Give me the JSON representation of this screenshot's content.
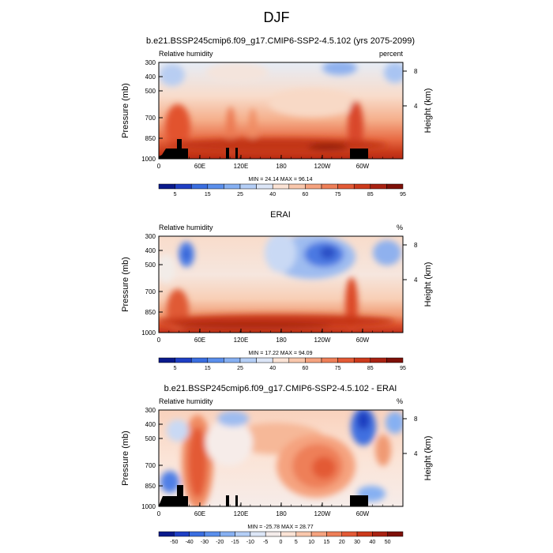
{
  "figure": {
    "title": "DJF"
  },
  "colors": {
    "abs_scale": [
      "#0a1a8c",
      "#1f3fc4",
      "#3a6ee0",
      "#5b8fec",
      "#86b0f2",
      "#b4cef6",
      "#dce6f7",
      "#fbe3d5",
      "#f9c7ac",
      "#f5a37f",
      "#ee7f58",
      "#e35a36",
      "#cc3a1c",
      "#a92212",
      "#7e1008"
    ],
    "diff_scale": [
      "#0a1a8c",
      "#1f3fc4",
      "#3a6ee0",
      "#5b8fec",
      "#86b0f2",
      "#b4cef6",
      "#dce6f7",
      "#f4ecea",
      "#fbe3d5",
      "#f9c7ac",
      "#f5a37f",
      "#ee7f58",
      "#e35a36",
      "#cc3a1c",
      "#a92212",
      "#7e1008"
    ],
    "terrain": "#000000"
  },
  "chart_data": [
    {
      "type": "heatmap",
      "title": "b.e21.BSSP245cmip6.f09_g17.CMIP6-SSP2-4.5.102 (yrs 2075-2099)",
      "left_label": "Relative humidity",
      "right_label": "percent",
      "ylabel": "Pressure (mb)",
      "y2label": "Height (km)",
      "x_ticks": [
        "0",
        "60E",
        "120E",
        "180",
        "120W",
        "60W"
      ],
      "y_ticks": [
        "300",
        "400",
        "500",
        "700",
        "850",
        "1000"
      ],
      "y2_ticks": [
        "8",
        "4"
      ],
      "stats": "MIN = 24.14  MAX = 96.14",
      "colorbar_labels": [
        "5",
        "15",
        "25",
        "40",
        "60",
        "75",
        "85",
        "95"
      ],
      "scale": "abs"
    },
    {
      "type": "heatmap",
      "title": "ERAI",
      "left_label": "Relative humidity",
      "right_label": "%",
      "ylabel": "Pressure (mb)",
      "y2label": "Height (km)",
      "x_ticks": [
        "0",
        "60E",
        "120E",
        "180",
        "120W",
        "60W"
      ],
      "y_ticks": [
        "300",
        "400",
        "500",
        "700",
        "850",
        "1000"
      ],
      "y2_ticks": [
        "8",
        "4"
      ],
      "stats": "MIN = 17.22  MAX = 94.09",
      "colorbar_labels": [
        "5",
        "15",
        "25",
        "40",
        "60",
        "75",
        "85",
        "95"
      ],
      "scale": "abs"
    },
    {
      "type": "heatmap",
      "title": "b.e21.BSSP245cmip6.f09_g17.CMIP6-SSP2-4.5.102 - ERAI",
      "left_label": "Relative humidity",
      "right_label": "%",
      "ylabel": "Pressure (mb)",
      "y2label": "Height (km)",
      "x_ticks": [
        "0",
        "60E",
        "120E",
        "180",
        "120W",
        "60W"
      ],
      "y_ticks": [
        "300",
        "400",
        "500",
        "700",
        "850",
        "1000"
      ],
      "y2_ticks": [
        "8",
        "4"
      ],
      "stats": "MIN = -25.78  MAX = 28.77",
      "colorbar_labels": [
        "-50",
        "-40",
        "-30",
        "-20",
        "-15",
        "-10",
        "-5",
        "0",
        "5",
        "10",
        "15",
        "20",
        "30",
        "40",
        "50"
      ],
      "scale": "diff"
    }
  ]
}
